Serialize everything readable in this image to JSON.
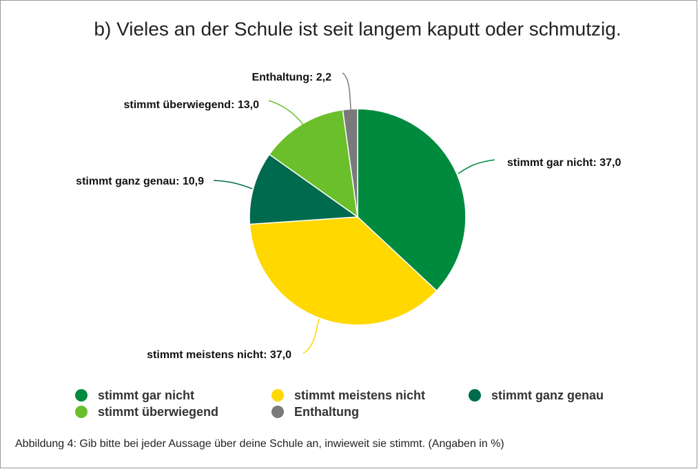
{
  "chart_data": {
    "type": "pie",
    "title": "b) Vieles an der Schule ist seit langem kaputt oder schmutzig.",
    "categories": [
      "stimmt gar nicht",
      "stimmt meistens nicht",
      "stimmt ganz genau",
      "stimmt überwiegend",
      "Enthaltung"
    ],
    "values": [
      37.0,
      37.0,
      10.9,
      13.0,
      2.2
    ],
    "value_labels": [
      "stimmt gar nicht: 37,0",
      "stimmt meistens nicht: 37,0",
      "stimmt ganz genau: 10,9",
      "stimmt überwiegend: 13,0",
      "Enthaltung: 2,2"
    ],
    "colors": [
      "#008a3e",
      "#ffd800",
      "#006a4e",
      "#6abf2a",
      "#7a7a7a"
    ],
    "legend": "bottom",
    "caption": "Abbildung 4: Gib bitte bei jeder Aussage über deine Schule an, inwieweit sie stimmt. (Angaben in %)"
  }
}
